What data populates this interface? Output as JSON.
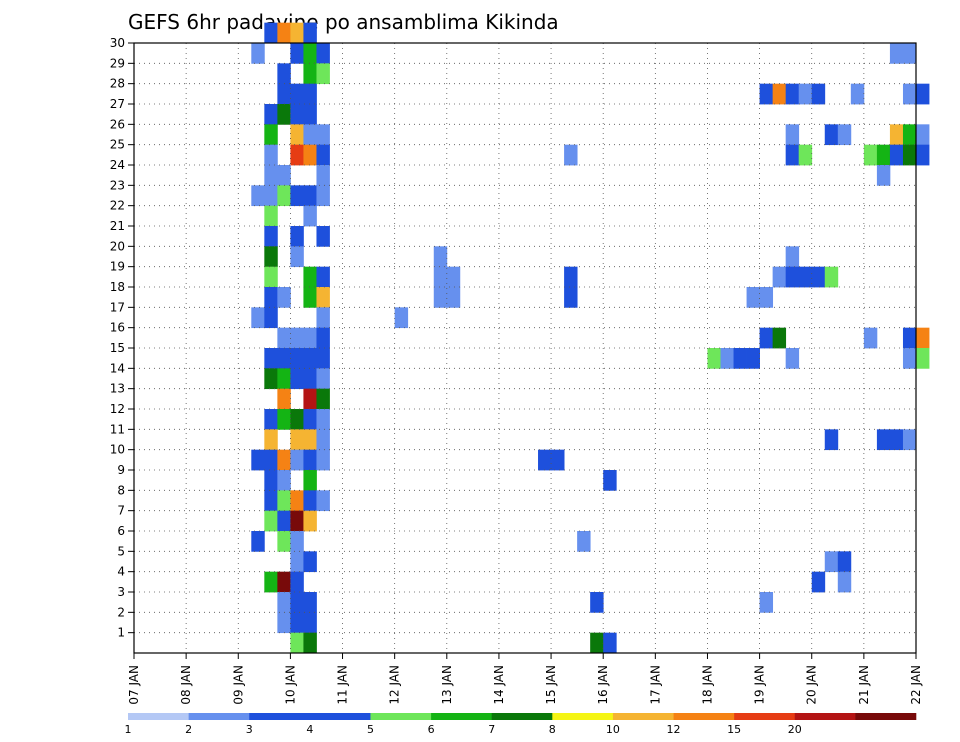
{
  "chart_data": {
    "type": "heatmap",
    "title": "GEFS 6hr padavine po ansamblima Kikinda",
    "x_tick_labels": [
      "07 JAN",
      "08 JAN",
      "09 JAN",
      "10 JAN",
      "11 JAN",
      "12 JAN",
      "13 JAN",
      "14 JAN",
      "15 JAN",
      "16 JAN",
      "17 JAN",
      "18 JAN",
      "19 JAN",
      "20 JAN",
      "21 JAN",
      "22 JAN"
    ],
    "y_tick_labels": [
      "1",
      "2",
      "3",
      "4",
      "5",
      "6",
      "7",
      "8",
      "9",
      "10",
      "11",
      "12",
      "13",
      "14",
      "15",
      "16",
      "17",
      "18",
      "19",
      "20",
      "21",
      "22",
      "23",
      "24",
      "25",
      "26",
      "27",
      "28",
      "29",
      "30"
    ],
    "x_range_steps": [
      0,
      60
    ],
    "y_range_members": [
      0,
      30
    ],
    "steps_per_day": 4,
    "grid": true,
    "legend": {
      "position": "bottom",
      "labels": [
        "1",
        "2",
        "3",
        "4",
        "5",
        "6",
        "7",
        "8",
        "10",
        "12",
        "15",
        "20"
      ],
      "colors": [
        "#b4c8f5",
        "#6690ee",
        "#1e50dc",
        "#1e50dc",
        "#6ee65a",
        "#14b414",
        "#0a780a",
        "#f5f514",
        "#f5b432",
        "#f58214",
        "#e63c14",
        "#b41414",
        "#780a0a"
      ]
    },
    "cell_encoding": "[time_step, member, color_class]",
    "cells": [
      [
        10,
        30,
        2
      ],
      [
        11,
        30,
        9
      ],
      [
        12,
        30,
        8
      ],
      [
        13,
        30,
        2
      ],
      [
        9,
        29,
        1
      ],
      [
        12,
        29,
        3
      ],
      [
        13,
        29,
        5
      ],
      [
        14,
        29,
        2
      ],
      [
        58,
        29,
        1
      ],
      [
        59,
        29,
        1
      ],
      [
        11,
        28,
        3
      ],
      [
        13,
        28,
        5
      ],
      [
        14,
        28,
        4
      ],
      [
        11,
        27,
        3
      ],
      [
        12,
        27,
        3
      ],
      [
        13,
        27,
        2
      ],
      [
        48,
        27,
        3
      ],
      [
        49,
        27,
        9
      ],
      [
        50,
        27,
        3
      ],
      [
        51,
        27,
        1
      ],
      [
        52,
        27,
        3
      ],
      [
        55,
        27,
        1
      ],
      [
        59,
        27,
        1
      ],
      [
        60,
        27,
        3
      ],
      [
        10,
        26,
        2
      ],
      [
        11,
        26,
        6
      ],
      [
        12,
        26,
        3
      ],
      [
        13,
        26,
        3
      ],
      [
        10,
        25,
        5
      ],
      [
        12,
        25,
        8
      ],
      [
        13,
        25,
        1
      ],
      [
        14,
        25,
        1
      ],
      [
        50,
        25,
        1
      ],
      [
        53,
        25,
        2
      ],
      [
        54,
        25,
        1
      ],
      [
        58,
        25,
        8
      ],
      [
        59,
        25,
        5
      ],
      [
        60,
        25,
        1
      ],
      [
        10,
        24,
        1
      ],
      [
        12,
        24,
        10
      ],
      [
        13,
        24,
        9
      ],
      [
        14,
        24,
        2
      ],
      [
        33,
        24,
        1
      ],
      [
        50,
        24,
        2
      ],
      [
        51,
        24,
        4
      ],
      [
        56,
        24,
        4
      ],
      [
        57,
        24,
        5
      ],
      [
        58,
        24,
        2
      ],
      [
        59,
        24,
        6
      ],
      [
        60,
        24,
        3
      ],
      [
        10,
        23,
        1
      ],
      [
        11,
        23,
        1
      ],
      [
        14,
        23,
        1
      ],
      [
        57,
        23,
        1
      ],
      [
        9,
        22,
        1
      ],
      [
        10,
        22,
        1
      ],
      [
        11,
        22,
        4
      ],
      [
        12,
        22,
        3
      ],
      [
        13,
        22,
        2
      ],
      [
        14,
        22,
        1
      ],
      [
        10,
        21,
        4
      ],
      [
        13,
        21,
        1
      ],
      [
        10,
        20,
        3
      ],
      [
        12,
        20,
        2
      ],
      [
        14,
        20,
        2
      ],
      [
        10,
        19,
        6
      ],
      [
        12,
        19,
        1
      ],
      [
        23,
        19,
        1
      ],
      [
        50,
        19,
        1
      ],
      [
        10,
        18,
        4
      ],
      [
        13,
        18,
        5
      ],
      [
        14,
        18,
        3
      ],
      [
        23,
        18,
        1
      ],
      [
        24,
        18,
        1
      ],
      [
        33,
        18,
        2
      ],
      [
        49,
        18,
        1
      ],
      [
        50,
        18,
        3
      ],
      [
        51,
        18,
        3
      ],
      [
        52,
        18,
        3
      ],
      [
        53,
        18,
        4
      ],
      [
        10,
        17,
        3
      ],
      [
        11,
        17,
        1
      ],
      [
        13,
        17,
        5
      ],
      [
        14,
        17,
        8
      ],
      [
        23,
        17,
        1
      ],
      [
        24,
        17,
        1
      ],
      [
        33,
        17,
        2
      ],
      [
        47,
        17,
        1
      ],
      [
        48,
        17,
        1
      ],
      [
        9,
        16,
        1
      ],
      [
        10,
        16,
        2
      ],
      [
        14,
        16,
        1
      ],
      [
        20,
        16,
        1
      ],
      [
        11,
        15,
        1
      ],
      [
        12,
        15,
        1
      ],
      [
        13,
        15,
        1
      ],
      [
        14,
        15,
        2
      ],
      [
        48,
        15,
        3
      ],
      [
        49,
        15,
        6
      ],
      [
        56,
        15,
        1
      ],
      [
        59,
        15,
        2
      ],
      [
        60,
        15,
        9
      ],
      [
        10,
        14,
        2
      ],
      [
        11,
        14,
        2
      ],
      [
        12,
        14,
        2
      ],
      [
        13,
        14,
        2
      ],
      [
        14,
        14,
        2
      ],
      [
        44,
        14,
        4
      ],
      [
        45,
        14,
        1
      ],
      [
        46,
        14,
        2
      ],
      [
        47,
        14,
        2
      ],
      [
        50,
        14,
        1
      ],
      [
        59,
        14,
        1
      ],
      [
        60,
        14,
        4
      ],
      [
        10,
        13,
        6
      ],
      [
        11,
        13,
        5
      ],
      [
        12,
        13,
        3
      ],
      [
        13,
        13,
        3
      ],
      [
        14,
        13,
        1
      ],
      [
        11,
        12,
        9
      ],
      [
        13,
        12,
        11
      ],
      [
        14,
        12,
        6
      ],
      [
        10,
        11,
        3
      ],
      [
        11,
        11,
        5
      ],
      [
        12,
        11,
        6
      ],
      [
        13,
        11,
        2
      ],
      [
        14,
        11,
        1
      ],
      [
        10,
        10,
        8
      ],
      [
        12,
        10,
        8
      ],
      [
        13,
        10,
        8
      ],
      [
        14,
        10,
        1
      ],
      [
        53,
        10,
        2
      ],
      [
        57,
        10,
        2
      ],
      [
        58,
        10,
        2
      ],
      [
        59,
        10,
        1
      ],
      [
        9,
        9,
        3
      ],
      [
        10,
        9,
        3
      ],
      [
        11,
        9,
        9
      ],
      [
        12,
        9,
        1
      ],
      [
        13,
        9,
        2
      ],
      [
        14,
        9,
        1
      ],
      [
        31,
        9,
        3
      ],
      [
        32,
        9,
        2
      ],
      [
        10,
        8,
        3
      ],
      [
        11,
        8,
        1
      ],
      [
        13,
        8,
        5
      ],
      [
        36,
        8,
        2
      ],
      [
        10,
        7,
        3
      ],
      [
        11,
        7,
        4
      ],
      [
        12,
        7,
        9
      ],
      [
        13,
        7,
        3
      ],
      [
        14,
        7,
        1
      ],
      [
        10,
        6,
        4
      ],
      [
        11,
        6,
        3
      ],
      [
        12,
        6,
        12
      ],
      [
        13,
        6,
        8
      ],
      [
        9,
        5,
        2
      ],
      [
        11,
        5,
        4
      ],
      [
        12,
        5,
        1
      ],
      [
        34,
        5,
        1
      ],
      [
        12,
        4,
        1
      ],
      [
        13,
        4,
        3
      ],
      [
        53,
        4,
        1
      ],
      [
        54,
        4,
        3
      ],
      [
        10,
        3,
        5
      ],
      [
        11,
        3,
        12
      ],
      [
        12,
        3,
        3
      ],
      [
        52,
        3,
        3
      ],
      [
        54,
        3,
        1
      ],
      [
        11,
        2,
        1
      ],
      [
        12,
        2,
        3
      ],
      [
        13,
        2,
        3
      ],
      [
        35,
        2,
        2
      ],
      [
        48,
        2,
        1
      ],
      [
        11,
        1,
        1
      ],
      [
        12,
        1,
        3
      ],
      [
        13,
        1,
        3
      ],
      [
        12,
        0,
        4
      ],
      [
        13,
        0,
        6
      ],
      [
        35,
        0,
        6
      ],
      [
        36,
        0,
        3
      ]
    ]
  }
}
